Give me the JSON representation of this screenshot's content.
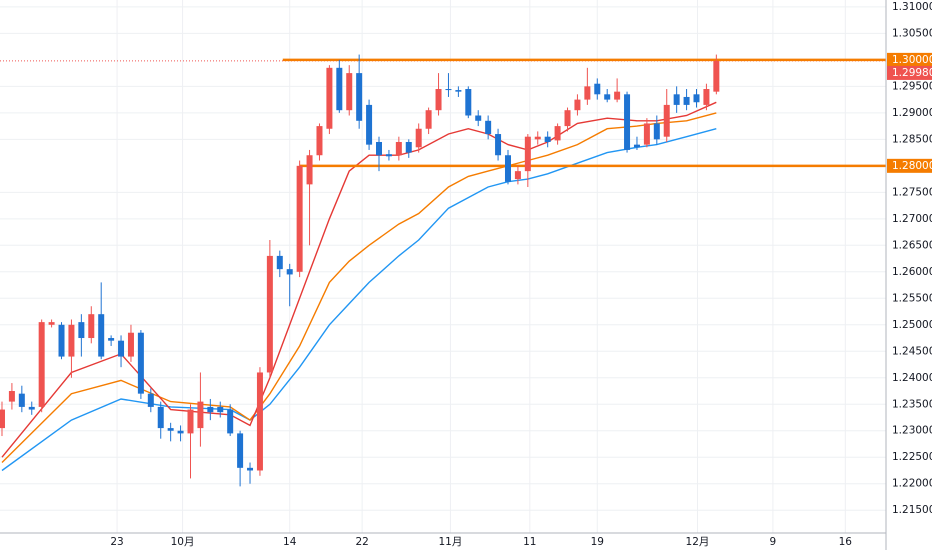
{
  "chart_data": {
    "type": "candlestick",
    "xlim": [
      -0.2,
      89.1
    ],
    "ylim": [
      1.2107,
      1.3113
    ],
    "xticks": [
      {
        "value": 11.6,
        "label": "23"
      },
      {
        "value": 18.2,
        "label": "10月"
      },
      {
        "value": 29.0,
        "label": "14"
      },
      {
        "value": 36.3,
        "label": "22"
      },
      {
        "value": 45.2,
        "label": "11月"
      },
      {
        "value": 53.2,
        "label": "11"
      },
      {
        "value": 60.0,
        "label": "19"
      },
      {
        "value": 70.1,
        "label": "12月"
      },
      {
        "value": 77.7,
        "label": "9"
      },
      {
        "value": 85.0,
        "label": "16"
      }
    ],
    "yticks": [
      {
        "value": 1.31,
        "label": "1.31000"
      },
      {
        "value": 1.305,
        "label": "1.30500"
      },
      {
        "value": 1.295,
        "label": "1.29500"
      },
      {
        "value": 1.29,
        "label": "1.29000"
      },
      {
        "value": 1.285,
        "label": "1.28500"
      },
      {
        "value": 1.275,
        "label": "1.27500"
      },
      {
        "value": 1.27,
        "label": "1.27000"
      },
      {
        "value": 1.265,
        "label": "1.26500"
      },
      {
        "value": 1.26,
        "label": "1.26000"
      },
      {
        "value": 1.255,
        "label": "1.25500"
      },
      {
        "value": 1.25,
        "label": "1.25000"
      },
      {
        "value": 1.245,
        "label": "1.24500"
      },
      {
        "value": 1.24,
        "label": "1.24000"
      },
      {
        "value": 1.235,
        "label": "1.23500"
      },
      {
        "value": 1.23,
        "label": "1.23000"
      },
      {
        "value": 1.225,
        "label": "1.22500"
      },
      {
        "value": 1.22,
        "label": "1.22000"
      },
      {
        "value": 1.215,
        "label": "1.21500"
      }
    ],
    "grid": true,
    "up_color": "#ef5350",
    "down_color": "#1e73d2",
    "open": [
      1.2305,
      1.2355,
      1.237,
      1.2345,
      1.2345,
      1.25,
      1.25,
      1.244,
      1.2505,
      1.2475,
      1.252,
      1.2475,
      1.247,
      1.244,
      1.2485,
      1.237,
      1.2345,
      1.2305,
      1.23,
      1.2295,
      1.2305,
      1.2345,
      1.2345,
      1.234,
      1.2295,
      1.223,
      1.2225,
      1.241,
      1.263,
      1.2605,
      1.26,
      1.2765,
      1.282,
      1.287,
      1.2985,
      1.2905,
      1.2975,
      1.2915,
      1.2845,
      1.2822,
      1.282,
      1.2845,
      1.2835,
      1.287,
      1.2905,
      1.2945,
      1.2943,
      1.2945,
      1.2895,
      1.2885,
      1.286,
      1.282,
      1.2775,
      1.279,
      1.285,
      1.2855,
      1.2848,
      1.2875,
      1.2905,
      1.2925,
      1.2955,
      1.2935,
      1.2925,
      1.2935,
      1.284,
      1.284,
      1.288,
      1.2855,
      1.2935,
      1.293,
      1.2935,
      1.2915,
      1.294
    ],
    "high": [
      1.2355,
      1.239,
      1.2385,
      1.2355,
      1.251,
      1.251,
      1.2505,
      1.251,
      1.252,
      1.2535,
      1.258,
      1.248,
      1.248,
      1.25,
      1.249,
      1.238,
      1.2355,
      1.2315,
      1.231,
      1.235,
      1.241,
      1.236,
      1.2355,
      1.235,
      1.23,
      1.224,
      1.242,
      1.266,
      1.264,
      1.2615,
      1.281,
      1.283,
      1.288,
      1.299,
      1.3,
      1.299,
      1.301,
      1.2925,
      1.2855,
      1.283,
      1.2855,
      1.285,
      1.288,
      1.291,
      1.2975,
      1.2975,
      1.295,
      1.295,
      1.2905,
      1.2895,
      1.287,
      1.283,
      1.28,
      1.286,
      1.2865,
      1.2865,
      1.288,
      1.291,
      1.2935,
      1.2985,
      1.2965,
      1.2945,
      1.2965,
      1.294,
      1.2855,
      1.289,
      1.2895,
      1.2945,
      1.295,
      1.2945,
      1.2945,
      1.2955,
      1.301
    ],
    "low": [
      1.229,
      1.234,
      1.2335,
      1.233,
      1.2335,
      1.2495,
      1.2435,
      1.24,
      1.244,
      1.2465,
      1.2435,
      1.246,
      1.242,
      1.243,
      1.236,
      1.2335,
      1.2285,
      1.228,
      1.228,
      1.221,
      1.227,
      1.232,
      1.2325,
      1.229,
      1.2195,
      1.22,
      1.2215,
      1.24,
      1.259,
      1.2535,
      1.259,
      1.265,
      1.281,
      1.286,
      1.29,
      1.2895,
      1.287,
      1.283,
      1.279,
      1.281,
      1.281,
      1.2815,
      1.2825,
      1.286,
      1.2895,
      1.293,
      1.293,
      1.289,
      1.2875,
      1.285,
      1.281,
      1.2765,
      1.2765,
      1.276,
      1.284,
      1.2835,
      1.284,
      1.2865,
      1.2895,
      1.2915,
      1.2925,
      1.292,
      1.292,
      1.2825,
      1.283,
      1.2835,
      1.284,
      1.2845,
      1.29,
      1.2905,
      1.291,
      1.2905,
      1.2935
    ],
    "close": [
      1.234,
      1.2375,
      1.2345,
      1.234,
      1.2505,
      1.2505,
      1.244,
      1.25,
      1.2475,
      1.252,
      1.244,
      1.247,
      1.244,
      1.2485,
      1.237,
      1.2345,
      1.2305,
      1.23,
      1.2295,
      1.234,
      1.2355,
      1.2335,
      1.2335,
      1.2295,
      1.223,
      1.2225,
      1.241,
      1.263,
      1.2605,
      1.2595,
      1.28,
      1.282,
      1.2875,
      1.2985,
      1.2905,
      1.2975,
      1.2885,
      1.284,
      1.282,
      1.2818,
      1.2845,
      1.2825,
      1.287,
      1.2905,
      1.2945,
      1.2943,
      1.294,
      1.2895,
      1.2885,
      1.286,
      1.282,
      1.277,
      1.279,
      1.2855,
      1.2855,
      1.2845,
      1.2875,
      1.2905,
      1.2925,
      1.295,
      1.2935,
      1.2925,
      1.294,
      1.283,
      1.2835,
      1.288,
      1.285,
      1.2915,
      1.2915,
      1.2915,
      1.292,
      1.2945,
      1.2998
    ],
    "series": [
      {
        "color": "#2196f3",
        "x": [
          0,
          7,
          12,
          17,
          23,
          25,
          27,
          30,
          33,
          35,
          37,
          40,
          42,
          45,
          47,
          49,
          51,
          53,
          55,
          58,
          61,
          64,
          66,
          69,
          72
        ],
        "values": [
          1.2225,
          1.232,
          1.236,
          1.2345,
          1.234,
          1.232,
          1.235,
          1.242,
          1.25,
          1.254,
          1.258,
          1.263,
          1.266,
          1.272,
          1.274,
          1.276,
          1.277,
          1.2775,
          1.2785,
          1.2805,
          1.2825,
          1.2835,
          1.284,
          1.2855,
          1.287
        ]
      },
      {
        "color": "#f57c00",
        "x": [
          0,
          7,
          12,
          17,
          23,
          25,
          27,
          30,
          33,
          35,
          37,
          40,
          42,
          45,
          47,
          49,
          51,
          53,
          55,
          58,
          61,
          64,
          66,
          69,
          72
        ],
        "values": [
          1.224,
          1.237,
          1.2395,
          1.2355,
          1.2345,
          1.232,
          1.237,
          1.246,
          1.258,
          1.262,
          1.265,
          1.269,
          1.271,
          1.276,
          1.278,
          1.279,
          1.28,
          1.281,
          1.282,
          1.284,
          1.287,
          1.2875,
          1.288,
          1.2885,
          1.29
        ]
      },
      {
        "color": "#e53935",
        "x": [
          0,
          7,
          12,
          17,
          23,
          25,
          27,
          30,
          33,
          35,
          37,
          40,
          42,
          45,
          47,
          49,
          51,
          53,
          55,
          58,
          61,
          64,
          66,
          69,
          72
        ],
        "values": [
          1.225,
          1.241,
          1.2445,
          1.234,
          1.233,
          1.231,
          1.24,
          1.255,
          1.27,
          1.279,
          1.282,
          1.282,
          1.283,
          1.286,
          1.287,
          1.286,
          1.284,
          1.283,
          1.2845,
          1.288,
          1.289,
          1.2885,
          1.2885,
          1.2895,
          1.292
        ]
      }
    ],
    "levels": [
      {
        "value": 1.3,
        "label": "1.30000",
        "x_start": 28.3,
        "color": "#f57c00"
      },
      {
        "value": 1.28,
        "label": "1.28000",
        "x_start": 30.0,
        "color": "#f57c00"
      }
    ],
    "last_price": {
      "value": 1.2998,
      "label": "1.29980",
      "color": "#ef5350"
    }
  }
}
